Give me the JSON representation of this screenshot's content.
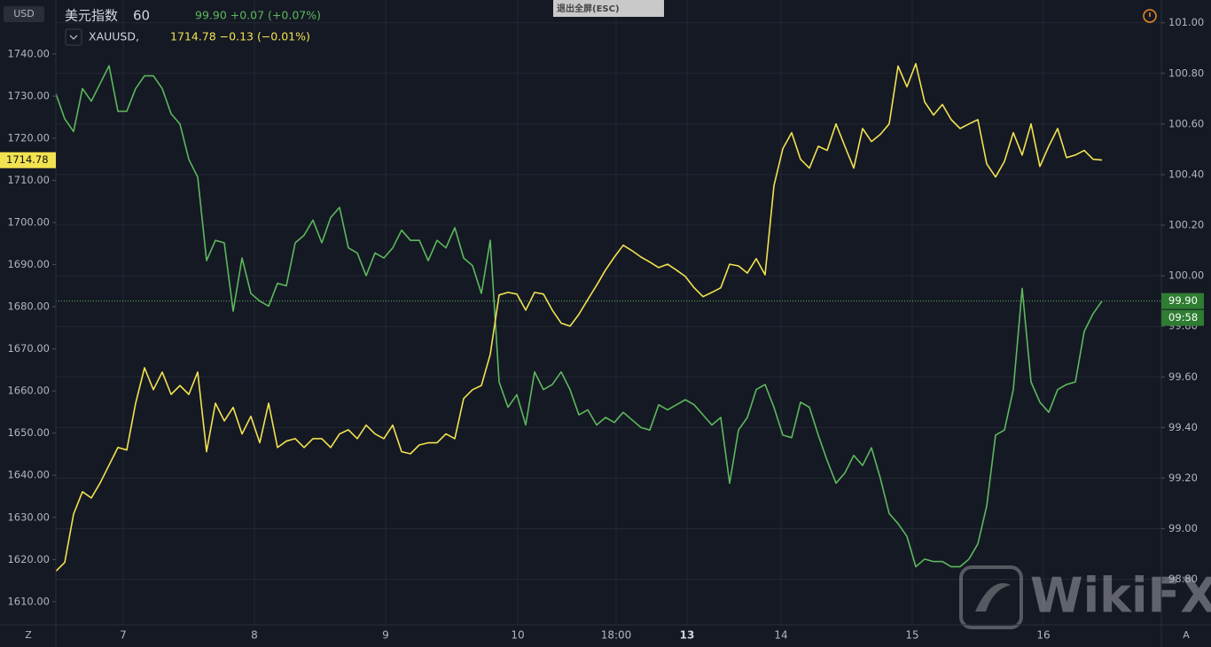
{
  "chart_data": {
    "type": "line",
    "interval": "60",
    "left_unit": "USD",
    "right_unit": "USD",
    "exit_button": "退出全屏(ESC)",
    "watermark": "WikiFX",
    "left_corner": "Z",
    "right_corner": "A",
    "countdown": "09:58",
    "grid": true,
    "xlim": [
      0,
      124
    ],
    "xticks": [
      {
        "value": 7.6,
        "label": "7"
      },
      {
        "value": 22.4,
        "label": "8"
      },
      {
        "value": 37.2,
        "label": "9"
      },
      {
        "value": 52.1,
        "label": "10"
      },
      {
        "value": 63.2,
        "label": "18:00"
      },
      {
        "value": 71.2,
        "label": "13"
      },
      {
        "value": 81.8,
        "label": "14"
      },
      {
        "value": 96.6,
        "label": "15"
      },
      {
        "value": 111.4,
        "label": "16"
      }
    ],
    "ylim": [
      1604.5,
      1752.8
    ],
    "yticks": [
      {
        "value": 1610,
        "label": "1610.00"
      },
      {
        "value": 1620,
        "label": "1620.00"
      },
      {
        "value": 1630,
        "label": "1630.00"
      },
      {
        "value": 1640,
        "label": "1640.00"
      },
      {
        "value": 1650,
        "label": "1650.00"
      },
      {
        "value": 1660,
        "label": "1660.00"
      },
      {
        "value": 1670,
        "label": "1670.00"
      },
      {
        "value": 1680,
        "label": "1680.00"
      },
      {
        "value": 1690,
        "label": "1690.00"
      },
      {
        "value": 1700,
        "label": "1700.00"
      },
      {
        "value": 1710,
        "label": "1710.00"
      },
      {
        "value": 1720,
        "label": "1720.00"
      },
      {
        "value": 1730,
        "label": "1730.00"
      },
      {
        "value": 1740,
        "label": "1740.00"
      }
    ],
    "y2lim": [
      98.62,
      101.09
    ],
    "y2ticks": [
      {
        "value": 98.8,
        "label": "98.80"
      },
      {
        "value": 99.0,
        "label": "99.00"
      },
      {
        "value": 99.2,
        "label": "99.20"
      },
      {
        "value": 99.4,
        "label": "99.40"
      },
      {
        "value": 99.6,
        "label": "99.60"
      },
      {
        "value": 99.8,
        "label": "99.80"
      },
      {
        "value": 100.0,
        "label": "100.00"
      },
      {
        "value": 100.2,
        "label": "100.20"
      },
      {
        "value": 100.4,
        "label": "100.40"
      },
      {
        "value": 100.6,
        "label": "100.60"
      },
      {
        "value": 100.8,
        "label": "100.80"
      },
      {
        "value": 101.0,
        "label": "101.00"
      }
    ],
    "series": [
      {
        "name": "美元指数",
        "color": "#5cb85c",
        "axis": "y2",
        "quote": "99.90 +0.07 (+0.07%)",
        "last": {
          "value": 99.9,
          "label": "99.90"
        },
        "values": [
          100.72,
          100.62,
          100.57,
          100.74,
          100.69,
          100.76,
          100.83,
          100.65,
          100.65,
          100.74,
          100.79,
          100.79,
          100.74,
          100.64,
          100.6,
          100.46,
          100.39,
          100.06,
          100.14,
          100.13,
          99.86,
          100.07,
          99.93,
          99.9,
          99.88,
          99.97,
          99.96,
          100.13,
          100.16,
          100.22,
          100.13,
          100.23,
          100.27,
          100.11,
          100.09,
          100.0,
          100.09,
          100.07,
          100.11,
          100.18,
          100.14,
          100.14,
          100.06,
          100.14,
          100.11,
          100.19,
          100.07,
          100.04,
          99.93,
          100.14,
          99.58,
          99.48,
          99.53,
          99.41,
          99.62,
          99.55,
          99.57,
          99.62,
          99.55,
          99.45,
          99.47,
          99.41,
          99.44,
          99.42,
          99.46,
          99.43,
          99.4,
          99.39,
          99.49,
          99.47,
          99.49,
          99.51,
          99.49,
          99.45,
          99.41,
          99.44,
          99.18,
          99.39,
          99.44,
          99.55,
          99.57,
          99.48,
          99.37,
          99.36,
          99.5,
          99.48,
          99.37,
          99.27,
          99.18,
          99.22,
          99.29,
          99.25,
          99.32,
          99.2,
          99.06,
          99.02,
          98.97,
          98.85,
          98.88,
          98.87,
          98.87,
          98.85,
          98.85,
          98.88,
          98.94,
          99.09,
          99.37,
          99.39,
          99.55,
          99.95,
          99.58,
          99.5,
          99.46,
          99.55,
          99.57,
          99.58,
          99.78,
          99.85,
          99.9
        ]
      },
      {
        "name": "XAUUSD,",
        "color": "#f2e250",
        "axis": "y",
        "quote": "1714.78 −0.13 (−0.01%)",
        "last": 1714.78,
        "values": [
          1617.2,
          1619.3,
          1630.8,
          1636.1,
          1634.6,
          1638.2,
          1642.4,
          1646.6,
          1646.0,
          1657.1,
          1665.5,
          1660.3,
          1664.5,
          1659.2,
          1661.3,
          1659.2,
          1664.5,
          1645.6,
          1657.1,
          1652.9,
          1656.1,
          1649.8,
          1654.0,
          1647.7,
          1657.1,
          1646.6,
          1648.1,
          1648.7,
          1646.6,
          1648.7,
          1648.7,
          1646.6,
          1649.8,
          1650.8,
          1648.7,
          1651.9,
          1649.8,
          1648.7,
          1651.9,
          1645.6,
          1645.1,
          1647.2,
          1647.7,
          1647.7,
          1649.8,
          1648.7,
          1658.2,
          1660.3,
          1661.3,
          1668.7,
          1682.8,
          1683.4,
          1683.0,
          1679.2,
          1683.4,
          1683.0,
          1679.2,
          1676.1,
          1675.4,
          1678.2,
          1681.7,
          1685.1,
          1688.7,
          1691.8,
          1694.6,
          1693.3,
          1691.8,
          1690.6,
          1689.3,
          1690.1,
          1688.7,
          1687.2,
          1684.5,
          1682.4,
          1683.4,
          1684.5,
          1690.1,
          1689.7,
          1688.0,
          1691.4,
          1687.6,
          1708.7,
          1717.5,
          1721.3,
          1715.0,
          1712.9,
          1718.1,
          1717.1,
          1723.4,
          1718.1,
          1712.9,
          1722.3,
          1719.2,
          1720.9,
          1723.4,
          1737.1,
          1732.2,
          1737.7,
          1728.6,
          1725.5,
          1728.0,
          1724.4,
          1722.3,
          1723.4,
          1724.4,
          1713.9,
          1710.8,
          1714.5,
          1721.3,
          1716.0,
          1723.4,
          1713.3,
          1718.1,
          1722.3,
          1715.4,
          1716.0,
          1717.1,
          1715.0,
          1714.8
        ]
      }
    ]
  }
}
